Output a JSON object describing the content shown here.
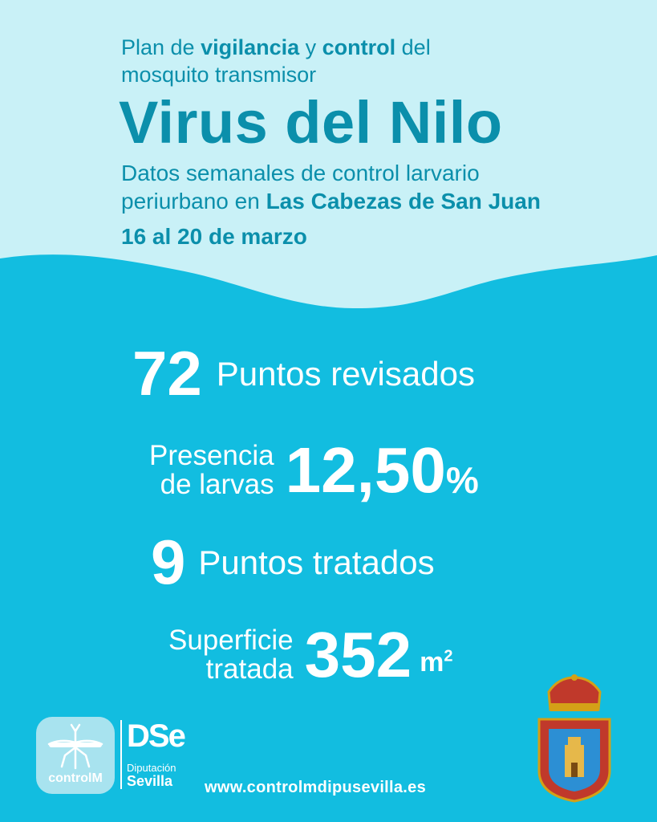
{
  "header": {
    "intro_pre": "Plan de ",
    "intro_b1": "vigilancia",
    "intro_mid": " y ",
    "intro_b2": "control",
    "intro_post": " del",
    "intro_line2": "mosquito transmisor",
    "title": "Virus del Nilo",
    "subtitle_line1": "Datos semanales de control larvario",
    "subtitle_line2_pre": "periurbano en ",
    "subtitle_line2_bold": "Las Cabezas de San Juan",
    "dates": "16 al 20 de marzo"
  },
  "stats": {
    "points_reviewed_value": "72",
    "points_reviewed_label": "Puntos revisados",
    "larvae_label_line1": "Presencia",
    "larvae_label_line2": "de larvas",
    "larvae_value": "12,50",
    "larvae_unit": "%",
    "points_treated_value": "9",
    "points_treated_label": "Puntos tratados",
    "surface_label_line1": "Superficie",
    "surface_label_line2": "tratada",
    "surface_value": "352",
    "surface_unit": "m",
    "surface_unit_exp": "2"
  },
  "footer": {
    "controlm_label": "controlM",
    "dse_mark": "DSe",
    "dse_line1": "Diputación",
    "dse_line2": "Sevilla",
    "website": "www.controlmdipusevilla.es"
  },
  "colors": {
    "background": "#12bde0",
    "header_bg": "#c9f1f7",
    "header_text": "#0b8fab",
    "stat_text": "#ffffff"
  },
  "icons": [
    "mosquito-icon",
    "coat-of-arms-icon"
  ]
}
